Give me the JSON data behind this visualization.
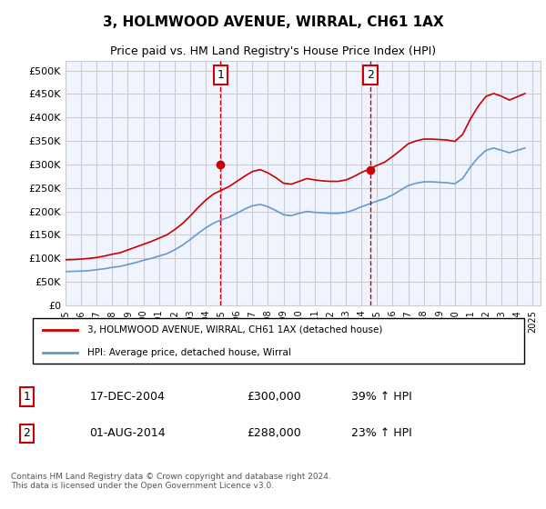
{
  "title": "3, HOLMWOOD AVENUE, WIRRAL, CH61 1AX",
  "subtitle": "Price paid vs. HM Land Registry's House Price Index (HPI)",
  "legend_line1": "3, HOLMWOOD AVENUE, WIRRAL, CH61 1AX (detached house)",
  "legend_line2": "HPI: Average price, detached house, Wirral",
  "footnote": "Contains HM Land Registry data © Crown copyright and database right 2024.\nThis data is licensed under the Open Government Licence v3.0.",
  "sale1_label": "1",
  "sale1_date": "17-DEC-2004",
  "sale1_price": "£300,000",
  "sale1_hpi": "39% ↑ HPI",
  "sale2_label": "2",
  "sale2_date": "01-AUG-2014",
  "sale2_price": "£288,000",
  "sale2_hpi": "23% ↑ HPI",
  "sale1_x": 2004.96,
  "sale1_y": 300000,
  "sale2_x": 2014.58,
  "sale2_y": 288000,
  "vline1_x": 2004.96,
  "vline2_x": 2014.58,
  "background_color": "#f0f4ff",
  "plot_bg_color": "#f0f4ff",
  "grid_color": "#cccccc",
  "red_line_color": "#cc0000",
  "blue_line_color": "#6699cc",
  "sale_dot_color": "#cc0000",
  "vline_color": "#cc0000",
  "ylim_min": 0,
  "ylim_max": 520000,
  "yticks": [
    0,
    50000,
    100000,
    150000,
    200000,
    250000,
    300000,
    350000,
    400000,
    450000,
    500000
  ],
  "xmin": 1995,
  "xmax": 2025.5,
  "hpi_x": [
    1995.0,
    1995.5,
    1996.0,
    1996.5,
    1997.0,
    1997.5,
    1998.0,
    1998.5,
    1999.0,
    1999.5,
    2000.0,
    2000.5,
    2001.0,
    2001.5,
    2002.0,
    2002.5,
    2003.0,
    2003.5,
    2004.0,
    2004.5,
    2005.0,
    2005.5,
    2006.0,
    2006.5,
    2007.0,
    2007.5,
    2008.0,
    2008.5,
    2009.0,
    2009.5,
    2010.0,
    2010.5,
    2011.0,
    2011.5,
    2012.0,
    2012.5,
    2013.0,
    2013.5,
    2014.0,
    2014.5,
    2015.0,
    2015.5,
    2016.0,
    2016.5,
    2017.0,
    2017.5,
    2018.0,
    2018.5,
    2019.0,
    2019.5,
    2020.0,
    2020.5,
    2021.0,
    2021.5,
    2022.0,
    2022.5,
    2023.0,
    2023.5,
    2024.0,
    2024.5
  ],
  "hpi_y": [
    72000,
    72500,
    73000,
    74000,
    76000,
    78000,
    81000,
    83000,
    87000,
    91000,
    96000,
    100000,
    105000,
    110000,
    118000,
    128000,
    140000,
    153000,
    165000,
    175000,
    182000,
    188000,
    196000,
    205000,
    212000,
    215000,
    210000,
    202000,
    193000,
    191000,
    196000,
    200000,
    198000,
    197000,
    196000,
    196000,
    198000,
    203000,
    210000,
    216000,
    222000,
    227000,
    235000,
    245000,
    255000,
    260000,
    263000,
    263000,
    262000,
    261000,
    259000,
    270000,
    295000,
    315000,
    330000,
    335000,
    330000,
    325000,
    330000,
    335000
  ],
  "red_x": [
    1995.0,
    1995.5,
    1996.0,
    1996.5,
    1997.0,
    1997.5,
    1998.0,
    1998.5,
    1999.0,
    1999.5,
    2000.0,
    2000.5,
    2001.0,
    2001.5,
    2002.0,
    2002.5,
    2003.0,
    2003.5,
    2004.0,
    2004.5,
    2005.0,
    2005.5,
    2006.0,
    2006.5,
    2007.0,
    2007.5,
    2008.0,
    2008.5,
    2009.0,
    2009.5,
    2010.0,
    2010.5,
    2011.0,
    2011.5,
    2012.0,
    2012.5,
    2013.0,
    2013.5,
    2014.0,
    2014.5,
    2015.0,
    2015.5,
    2016.0,
    2016.5,
    2017.0,
    2017.5,
    2018.0,
    2018.5,
    2019.0,
    2019.5,
    2020.0,
    2020.5,
    2021.0,
    2021.5,
    2022.0,
    2022.5,
    2023.0,
    2023.5,
    2024.0,
    2024.5
  ],
  "red_y": [
    97000,
    97500,
    98500,
    100000,
    102000,
    105000,
    109000,
    112000,
    118000,
    124000,
    130000,
    136000,
    143000,
    150000,
    161000,
    174000,
    190000,
    208000,
    224000,
    237000,
    245000,
    253000,
    264000,
    275000,
    285000,
    289000,
    282000,
    272000,
    260000,
    258000,
    264000,
    270000,
    267000,
    265000,
    264000,
    264000,
    267000,
    274000,
    283000,
    290000,
    298000,
    305000,
    317000,
    330000,
    344000,
    350000,
    354000,
    354000,
    353000,
    352000,
    349000,
    364000,
    397000,
    424000,
    445000,
    451000,
    445000,
    437000,
    444000,
    451000
  ]
}
